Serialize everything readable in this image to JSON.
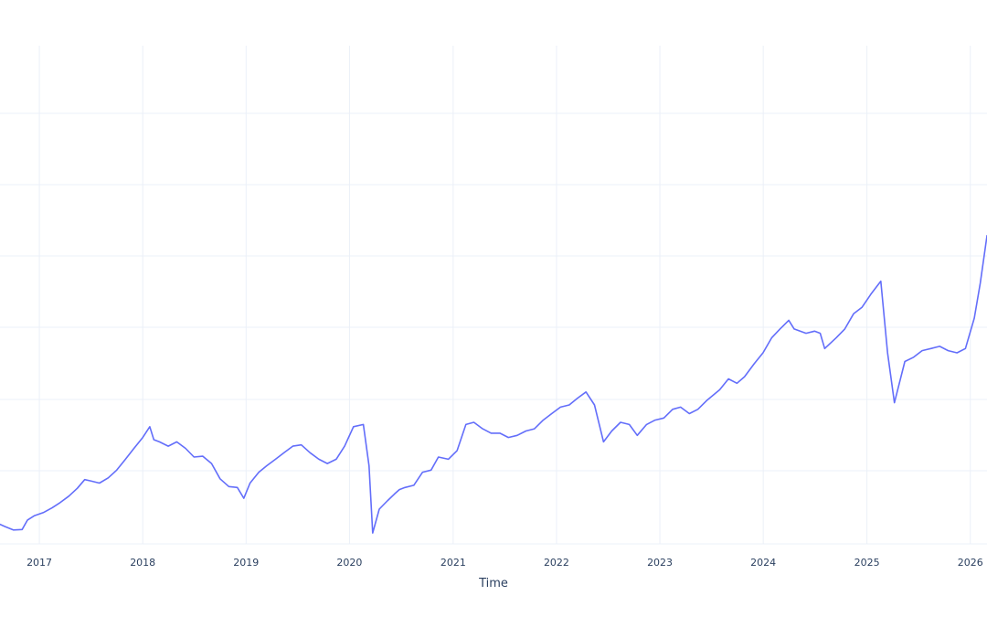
{
  "chart_data": {
    "type": "line",
    "title": "",
    "xlabel": "Time",
    "ylabel": "",
    "x_ticks": [
      "2017",
      "2018",
      "2019",
      "2020",
      "2021",
      "2022",
      "2023",
      "2024",
      "2025",
      "2026"
    ],
    "xlim": [
      "2016-08-15",
      "2026-03-01"
    ],
    "ylim": [
      0,
      100
    ],
    "grid": true,
    "legend": "none",
    "colors": {
      "series": "#636efa",
      "grid": "#ebf0f8",
      "text": "#2a3f5f",
      "background": "#ffffff"
    },
    "series": [
      {
        "x": [
          "2016-08-15",
          "2016-09-01",
          "2016-10-01",
          "2016-11-01",
          "2016-11-20",
          "2016-12-15",
          "2017-01-15",
          "2017-02-15",
          "2017-03-15",
          "2017-04-15",
          "2017-05-15",
          "2017-06-10",
          "2017-07-01",
          "2017-08-01",
          "2017-09-01",
          "2017-10-01",
          "2017-11-01",
          "2017-12-01",
          "2018-01-01",
          "2018-01-26",
          "2018-02-09",
          "2018-03-01",
          "2018-04-01",
          "2018-05-01",
          "2018-06-01",
          "2018-07-01",
          "2018-08-01",
          "2018-09-01",
          "2018-10-01",
          "2018-11-01",
          "2018-12-01",
          "2018-12-24",
          "2019-01-15",
          "2019-02-15",
          "2019-03-15",
          "2019-04-15",
          "2019-05-15",
          "2019-06-15",
          "2019-07-15",
          "2019-08-15",
          "2019-09-15",
          "2019-10-15",
          "2019-11-15",
          "2019-12-15",
          "2020-01-15",
          "2020-02-19",
          "2020-03-10",
          "2020-03-23",
          "2020-04-15",
          "2020-05-15",
          "2020-06-08",
          "2020-06-25",
          "2020-07-15",
          "2020-08-15",
          "2020-09-15",
          "2020-10-15",
          "2020-11-10",
          "2020-12-15",
          "2021-01-15",
          "2021-02-15",
          "2021-03-15",
          "2021-04-15",
          "2021-05-15",
          "2021-06-15",
          "2021-07-15",
          "2021-08-15",
          "2021-09-15",
          "2021-10-15",
          "2021-11-15",
          "2021-12-15",
          "2022-01-15",
          "2022-02-15",
          "2022-03-15",
          "2022-04-15",
          "2022-05-15",
          "2022-06-16",
          "2022-07-15",
          "2022-08-15",
          "2022-09-15",
          "2022-10-13",
          "2022-11-15",
          "2022-12-15",
          "2023-01-15",
          "2023-02-15",
          "2023-03-15",
          "2023-04-15",
          "2023-05-15",
          "2023-06-15",
          "2023-07-31",
          "2023-08-31",
          "2023-09-30",
          "2023-10-27",
          "2023-11-30",
          "2023-12-31",
          "2024-01-31",
          "2024-02-29",
          "2024-03-31",
          "2024-04-19",
          "2024-05-31",
          "2024-06-30",
          "2024-07-20",
          "2024-08-05",
          "2024-09-15",
          "2024-10-15",
          "2024-11-15",
          "2024-12-15",
          "2025-01-15",
          "2025-02-19",
          "2025-03-15",
          "2025-04-08",
          "2025-05-15",
          "2025-06-15",
          "2025-07-15",
          "2025-08-15",
          "2025-09-15",
          "2025-10-15",
          "2025-11-15",
          "2025-12-15",
          "2026-01-15",
          "2026-02-05",
          "2026-03-01"
        ],
        "y": [
          4.5,
          4.0,
          3.2,
          3.3,
          5.5,
          6.5,
          7.2,
          8.3,
          9.5,
          11.0,
          12.8,
          14.8,
          14.5,
          14.0,
          15.2,
          17.0,
          19.5,
          22.0,
          24.5,
          27.0,
          24.0,
          23.5,
          22.5,
          23.5,
          22.0,
          20.0,
          20.2,
          18.5,
          15.0,
          13.2,
          13.0,
          10.5,
          14.0,
          16.5,
          18.0,
          19.5,
          21.0,
          22.5,
          22.8,
          21.0,
          19.5,
          18.5,
          19.5,
          22.5,
          27.0,
          27.5,
          18.0,
          2.5,
          8.0,
          10.0,
          11.5,
          12.5,
          13.0,
          13.5,
          16.5,
          17.0,
          20.0,
          19.5,
          21.5,
          27.5,
          28.0,
          26.5,
          25.5,
          25.5,
          24.5,
          25.0,
          26.0,
          26.5,
          28.5,
          30.0,
          31.5,
          32.0,
          33.5,
          35.0,
          32.0,
          23.5,
          26.0,
          28.0,
          27.5,
          25.0,
          27.5,
          28.5,
          29.0,
          31.0,
          31.5,
          30.0,
          31.0,
          33.0,
          35.5,
          38.0,
          37.0,
          38.5,
          41.5,
          44.0,
          47.5,
          49.5,
          51.5,
          49.5,
          48.5,
          49.0,
          48.5,
          45.0,
          47.5,
          49.5,
          53.0,
          54.5,
          57.5,
          60.5,
          44.0,
          32.5,
          42.0,
          43.0,
          44.5,
          45.0,
          45.5,
          44.5,
          44.0,
          45.0,
          52.0,
          60.0,
          71.0
        ]
      }
    ]
  }
}
